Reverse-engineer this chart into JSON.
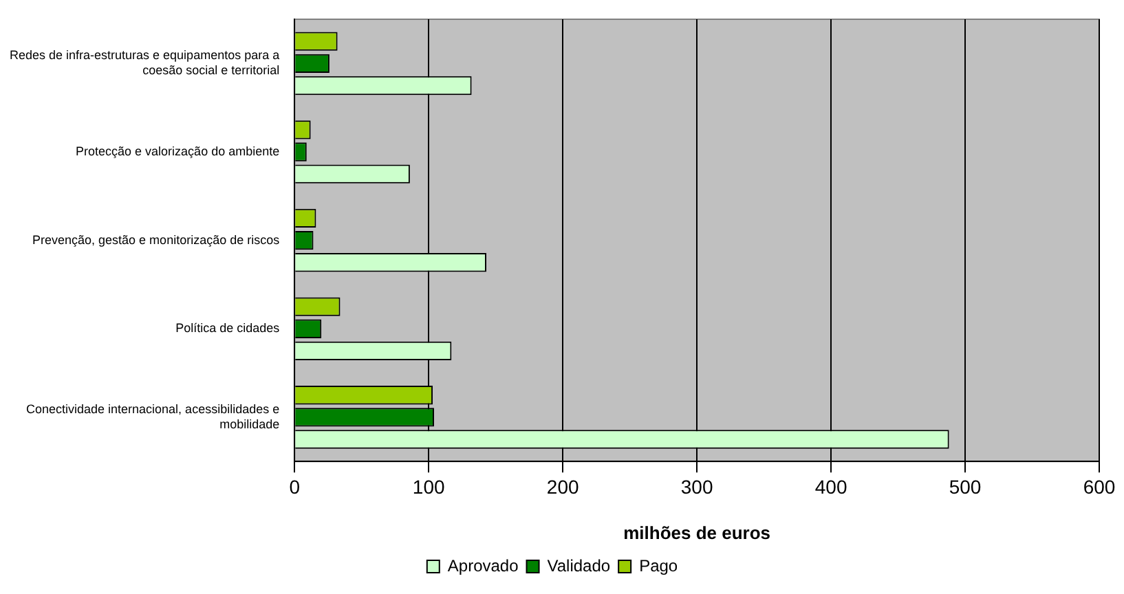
{
  "chart_data": {
    "type": "bar",
    "orientation": "horizontal",
    "xlabel": "milhões de euros",
    "categories": [
      "Redes de infra-estruturas e equipamentos para a coesão social e territorial",
      "Protecção e valorização do ambiente",
      "Prevenção, gestão e monitorização de riscos",
      "Política de cidades",
      "Conectividade internacional, acessibilidades e mobilidade"
    ],
    "series": [
      {
        "name": "Aprovado",
        "color": "#ccffcc",
        "values": [
          132,
          86,
          143,
          117,
          488
        ]
      },
      {
        "name": "Validado",
        "color": "#008000",
        "values": [
          26,
          9,
          14,
          20,
          104
        ]
      },
      {
        "name": "Pago",
        "color": "#99cc00",
        "values": [
          32,
          12,
          16,
          34,
          103
        ]
      }
    ],
    "xlim": [
      0,
      600
    ],
    "xticks": [
      0,
      100,
      200,
      300,
      400,
      500,
      600
    ],
    "grid": "x",
    "legend": "bottom"
  }
}
